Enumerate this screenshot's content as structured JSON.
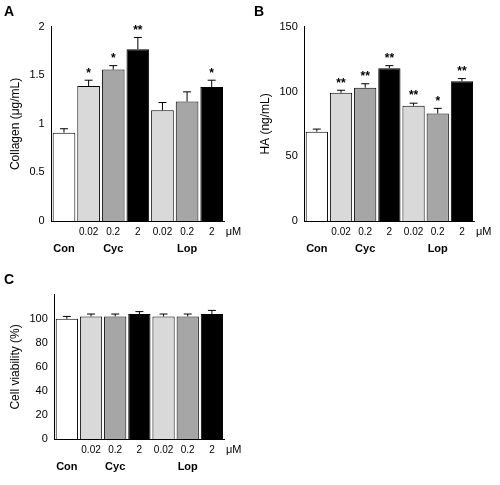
{
  "chart_data": [
    {
      "type": "bar",
      "title": "A",
      "y_label": "Collagen (μg/mL)",
      "categories": [
        null,
        "0.02",
        "0.2",
        "2",
        "0.02",
        "0.2",
        "2"
      ],
      "groups": [
        {
          "label": "Con",
          "count": 1
        },
        {
          "label": "Cyc",
          "count": 3
        },
        {
          "label": "Lop",
          "count": 3
        }
      ],
      "unit_label": "μM",
      "values": [
        0.91,
        1.39,
        1.56,
        1.77,
        1.14,
        1.23,
        1.38
      ],
      "errors": [
        0.04,
        0.06,
        0.04,
        0.12,
        0.08,
        0.1,
        0.07
      ],
      "significance": [
        null,
        "*",
        "*",
        "**",
        null,
        null,
        "*"
      ],
      "colors": [
        "#ffffff",
        "#d9d9d9",
        "#a6a6a6",
        "#000000",
        "#d9d9d9",
        "#a6a6a6",
        "#000000"
      ],
      "ylim": [
        0,
        2
      ],
      "yticks": [
        0,
        0.5,
        1,
        1.5,
        2
      ],
      "grid": false
    },
    {
      "type": "bar",
      "title": "B",
      "y_label": "HA (ng/mL)",
      "categories": [
        null,
        "0.02",
        "0.2",
        "2",
        "0.02",
        "0.2",
        "2"
      ],
      "groups": [
        {
          "label": "Con",
          "count": 1
        },
        {
          "label": "Cyc",
          "count": 3
        },
        {
          "label": "Lop",
          "count": 3
        }
      ],
      "unit_label": "μM",
      "values": [
        69,
        99,
        103,
        118,
        89,
        83,
        108
      ],
      "errors": [
        2,
        2,
        3,
        2,
        2,
        4,
        2
      ],
      "significance": [
        null,
        "**",
        "**",
        "**",
        "**",
        "*",
        "**"
      ],
      "colors": [
        "#ffffff",
        "#d9d9d9",
        "#a6a6a6",
        "#000000",
        "#d9d9d9",
        "#a6a6a6",
        "#000000"
      ],
      "ylim": [
        0,
        150
      ],
      "yticks": [
        0,
        50,
        100,
        150
      ],
      "grid": false
    },
    {
      "type": "bar",
      "title": "C",
      "y_label": "Cell viability (%)",
      "categories": [
        null,
        "0.02",
        "0.2",
        "2",
        "0.02",
        "0.2",
        "2"
      ],
      "groups": [
        {
          "label": "Con",
          "count": 1
        },
        {
          "label": "Cyc",
          "count": 3
        },
        {
          "label": "Lop",
          "count": 3
        }
      ],
      "unit_label": "μM",
      "values": [
        100,
        102,
        102,
        104,
        102,
        102,
        104
      ],
      "errors": [
        2,
        2,
        2,
        2,
        2,
        2,
        3
      ],
      "colors": [
        "#ffffff",
        "#d9d9d9",
        "#a6a6a6",
        "#000000",
        "#d9d9d9",
        "#a6a6a6",
        "#000000"
      ],
      "ylim": [
        0,
        120
      ],
      "yticks": [
        0,
        20,
        40,
        60,
        80,
        100
      ],
      "grid": false
    }
  ]
}
